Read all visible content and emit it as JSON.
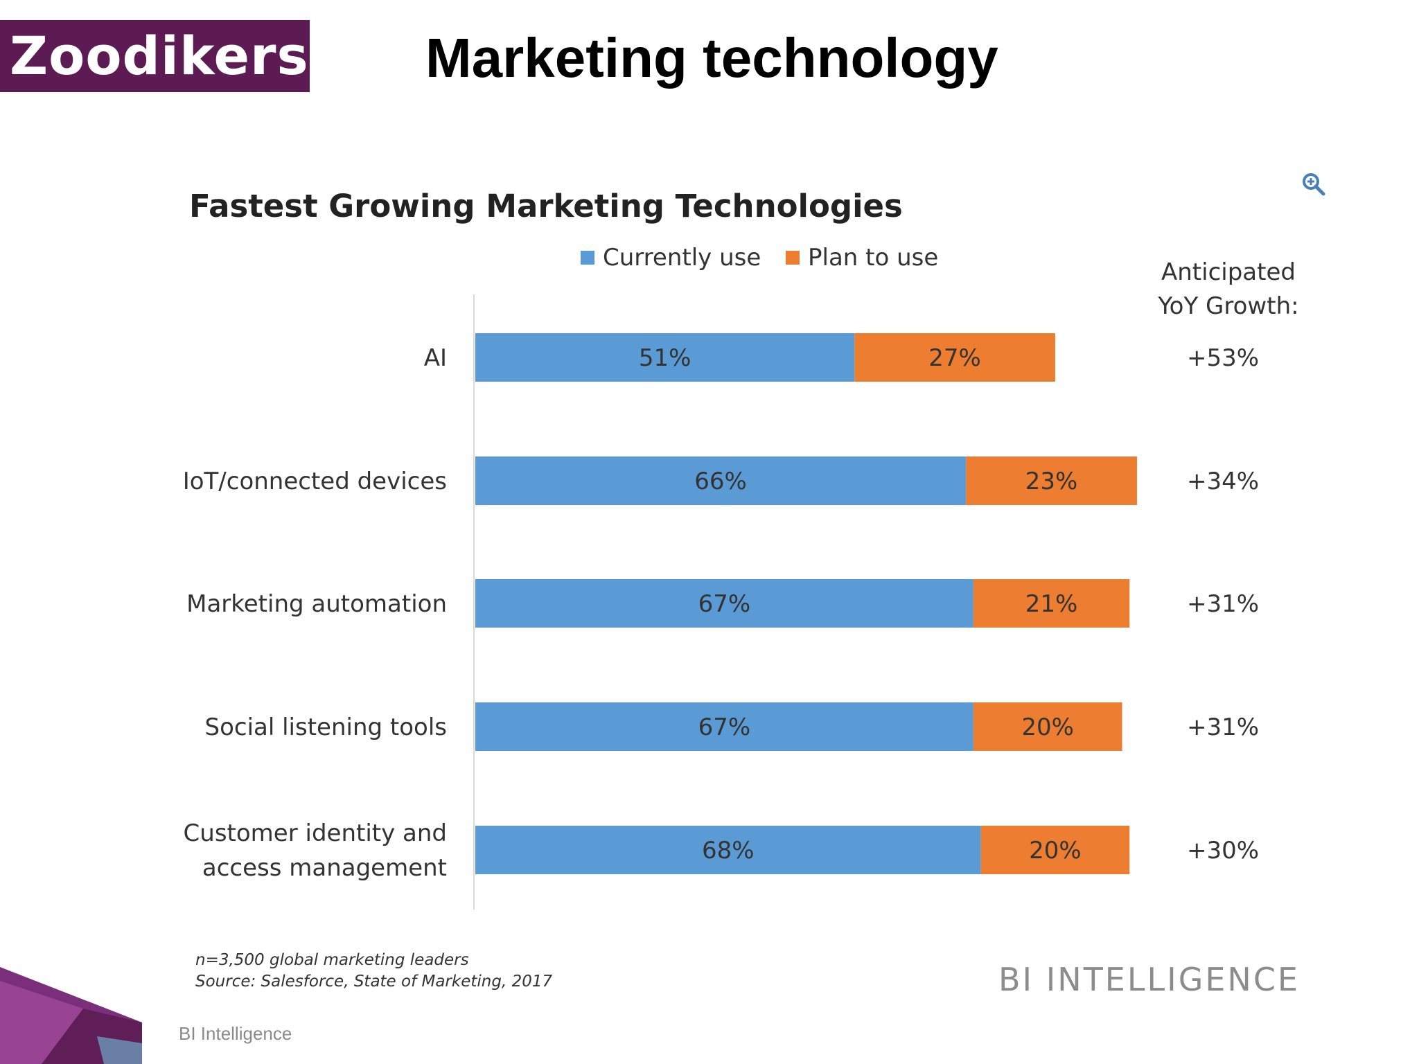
{
  "header": {
    "logo_text": "Zoodikers",
    "logo_color": "#5c1b52",
    "title": "Marketing technology"
  },
  "icons": {
    "zoom": "zoom-in-icon"
  },
  "chart_data": {
    "type": "bar",
    "stacked": true,
    "orientation": "horizontal",
    "title": "Fastest Growing Marketing Technologies",
    "categories": [
      [
        "AI"
      ],
      [
        "IoT/connected devices"
      ],
      [
        "Marketing automation"
      ],
      [
        "Social listening tools"
      ],
      [
        "Customer identity and",
        "access management"
      ]
    ],
    "series": [
      {
        "name": "Currently use",
        "values": [
          51,
          66,
          67,
          67,
          68
        ],
        "labels": [
          "51%",
          "66%",
          "67%",
          "67%",
          "68%"
        ],
        "color": "#5b9bd5"
      },
      {
        "name": "Plan to use",
        "values": [
          27,
          23,
          21,
          20,
          20
        ],
        "labels": [
          "27%",
          "23%",
          "21%",
          "20%",
          "20%"
        ],
        "color": "#ed7d31"
      }
    ],
    "growth_header": [
      "Anticipated",
      "YoY Growth:"
    ],
    "growth_values": [
      "+53%",
      "+34%",
      "+31%",
      "+31%",
      "+30%"
    ],
    "legend_position": "top-center",
    "grid": false,
    "footnote": [
      "n=3,500 global marketing leaders",
      "Source: Salesforce, State of Marketing, 2017"
    ],
    "brand": "BI INTELLIGENCE"
  },
  "footer": {
    "text": "BI Intelligence"
  }
}
